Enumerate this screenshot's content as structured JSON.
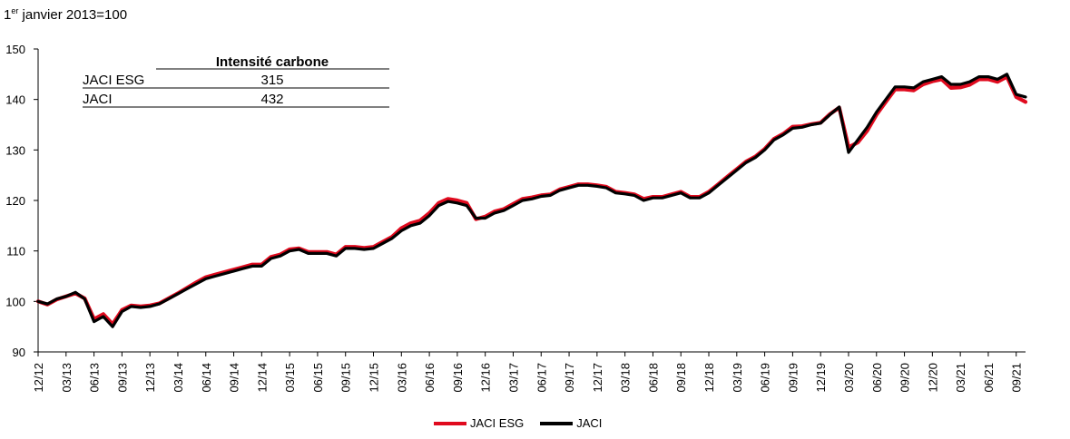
{
  "unit_label": {
    "main": "1",
    "sup": "er",
    "rest": " janvier 2013=100"
  },
  "colors": {
    "jaci_esg": "#e00a1e",
    "jaci": "#000000",
    "axis": "#000000"
  },
  "inset_table": {
    "header": "Intensité carbone",
    "rows": [
      {
        "name": "JACI ESG",
        "value": "315"
      },
      {
        "name": "JACI",
        "value": "432"
      }
    ]
  },
  "legend": [
    {
      "label": "JACI ESG",
      "series": "jaci_esg"
    },
    {
      "label": "JACI",
      "series": "jaci"
    }
  ],
  "chart_data": {
    "type": "line",
    "x_start": "2012-12",
    "x_end": "2021-10",
    "ylim": [
      90,
      150
    ],
    "y_ticks": [
      90,
      100,
      110,
      120,
      130,
      140,
      150
    ],
    "x_tick_labels": [
      "12/12",
      "03/13",
      "06/13",
      "09/13",
      "12/13",
      "03/14",
      "06/14",
      "09/14",
      "12/14",
      "03/15",
      "06/15",
      "09/15",
      "12/15",
      "03/16",
      "06/16",
      "09/16",
      "12/16",
      "03/17",
      "06/17",
      "09/17",
      "12/17",
      "03/18",
      "06/18",
      "09/18",
      "12/18",
      "03/19",
      "06/19",
      "09/19",
      "12/19",
      "03/20",
      "06/20",
      "09/20",
      "12/20",
      "03/21",
      "06/21",
      "09/21"
    ],
    "x_tick_dates": [
      "2012-12",
      "2013-03",
      "2013-06",
      "2013-09",
      "2013-12",
      "2014-03",
      "2014-06",
      "2014-09",
      "2014-12",
      "2015-03",
      "2015-06",
      "2015-09",
      "2015-12",
      "2016-03",
      "2016-06",
      "2016-09",
      "2016-12",
      "2017-03",
      "2017-06",
      "2017-09",
      "2017-12",
      "2018-03",
      "2018-06",
      "2018-09",
      "2018-12",
      "2019-03",
      "2019-06",
      "2019-09",
      "2019-12",
      "2020-03",
      "2020-06",
      "2020-09",
      "2020-12",
      "2021-03",
      "2021-06",
      "2021-09"
    ],
    "series": [
      {
        "name": "JACI",
        "key": "jaci",
        "points": [
          [
            "2012-12",
            100
          ],
          [
            "2013-01",
            99.5
          ],
          [
            "2013-02",
            100.5
          ],
          [
            "2013-03",
            101
          ],
          [
            "2013-04",
            101.8
          ],
          [
            "2013-05",
            100.5
          ],
          [
            "2013-06",
            96
          ],
          [
            "2013-07",
            97
          ],
          [
            "2013-08",
            95
          ],
          [
            "2013-09",
            98
          ],
          [
            "2013-10",
            99
          ],
          [
            "2013-11",
            98.8
          ],
          [
            "2013-12",
            99
          ],
          [
            "2014-01",
            99.5
          ],
          [
            "2014-02",
            100.5
          ],
          [
            "2014-03",
            101.5
          ],
          [
            "2014-04",
            102.5
          ],
          [
            "2014-05",
            103.5
          ],
          [
            "2014-06",
            104.5
          ],
          [
            "2014-07",
            105
          ],
          [
            "2014-08",
            105.5
          ],
          [
            "2014-09",
            106
          ],
          [
            "2014-10",
            106.5
          ],
          [
            "2014-11",
            107
          ],
          [
            "2014-12",
            107
          ],
          [
            "2015-01",
            108.5
          ],
          [
            "2015-02",
            109
          ],
          [
            "2015-03",
            110
          ],
          [
            "2015-04",
            110.3
          ],
          [
            "2015-05",
            109.5
          ],
          [
            "2015-06",
            109.5
          ],
          [
            "2015-07",
            109.5
          ],
          [
            "2015-08",
            109
          ],
          [
            "2015-09",
            110.5
          ],
          [
            "2015-10",
            110.5
          ],
          [
            "2015-11",
            110.3
          ],
          [
            "2015-12",
            110.5
          ],
          [
            "2016-01",
            111.5
          ],
          [
            "2016-02",
            112.5
          ],
          [
            "2016-03",
            114
          ],
          [
            "2016-04",
            115
          ],
          [
            "2016-05",
            115.5
          ],
          [
            "2016-06",
            117
          ],
          [
            "2016-07",
            119
          ],
          [
            "2016-08",
            119.8
          ],
          [
            "2016-09",
            119.5
          ],
          [
            "2016-10",
            119
          ],
          [
            "2016-11",
            116.5
          ],
          [
            "2016-12",
            116.5
          ],
          [
            "2017-01",
            117.5
          ],
          [
            "2017-02",
            118
          ],
          [
            "2017-03",
            119
          ],
          [
            "2017-04",
            120
          ],
          [
            "2017-05",
            120.3
          ],
          [
            "2017-06",
            120.8
          ],
          [
            "2017-07",
            121
          ],
          [
            "2017-08",
            122
          ],
          [
            "2017-09",
            122.5
          ],
          [
            "2017-10",
            123
          ],
          [
            "2017-11",
            123
          ],
          [
            "2017-12",
            122.8
          ],
          [
            "2018-01",
            122.5
          ],
          [
            "2018-02",
            121.5
          ],
          [
            "2018-03",
            121.3
          ],
          [
            "2018-04",
            121
          ],
          [
            "2018-05",
            120
          ],
          [
            "2018-06",
            120.5
          ],
          [
            "2018-07",
            120.5
          ],
          [
            "2018-08",
            121
          ],
          [
            "2018-09",
            121.5
          ],
          [
            "2018-10",
            120.5
          ],
          [
            "2018-11",
            120.5
          ],
          [
            "2018-12",
            121.5
          ],
          [
            "2019-01",
            123
          ],
          [
            "2019-02",
            124.5
          ],
          [
            "2019-03",
            126
          ],
          [
            "2019-04",
            127.5
          ],
          [
            "2019-05",
            128.5
          ],
          [
            "2019-06",
            130
          ],
          [
            "2019-07",
            132
          ],
          [
            "2019-08",
            133
          ],
          [
            "2019-09",
            134.3
          ],
          [
            "2019-10",
            134.5
          ],
          [
            "2019-11",
            135
          ],
          [
            "2019-12",
            135.3
          ],
          [
            "2020-01",
            137
          ],
          [
            "2020-02",
            138.5
          ],
          [
            "2020-03",
            129.5
          ],
          [
            "2020-04",
            132
          ],
          [
            "2020-05",
            134.5
          ],
          [
            "2020-06",
            137.5
          ],
          [
            "2020-07",
            140
          ],
          [
            "2020-08",
            142.5
          ],
          [
            "2020-09",
            142.5
          ],
          [
            "2020-10",
            142.3
          ],
          [
            "2020-11",
            143.5
          ],
          [
            "2020-12",
            144
          ],
          [
            "2021-01",
            144.5
          ],
          [
            "2021-02",
            143
          ],
          [
            "2021-03",
            143
          ],
          [
            "2021-04",
            143.5
          ],
          [
            "2021-05",
            144.5
          ],
          [
            "2021-06",
            144.5
          ],
          [
            "2021-07",
            144
          ],
          [
            "2021-08",
            145
          ],
          [
            "2021-09",
            141
          ],
          [
            "2021-10",
            140.5
          ]
        ]
      },
      {
        "name": "JACI ESG",
        "key": "jaci_esg",
        "points": [
          [
            "2012-12",
            100
          ],
          [
            "2013-01",
            99.4
          ],
          [
            "2013-02",
            100.4
          ],
          [
            "2013-03",
            101
          ],
          [
            "2013-04",
            101.6
          ],
          [
            "2013-05",
            100.6
          ],
          [
            "2013-06",
            96.5
          ],
          [
            "2013-07",
            97.5
          ],
          [
            "2013-08",
            95.5
          ],
          [
            "2013-09",
            98.3
          ],
          [
            "2013-10",
            99.2
          ],
          [
            "2013-11",
            99
          ],
          [
            "2013-12",
            99.2
          ],
          [
            "2014-01",
            99.6
          ],
          [
            "2014-02",
            100.6
          ],
          [
            "2014-03",
            101.6
          ],
          [
            "2014-04",
            102.7
          ],
          [
            "2014-05",
            103.8
          ],
          [
            "2014-06",
            104.8
          ],
          [
            "2014-07",
            105.3
          ],
          [
            "2014-08",
            105.8
          ],
          [
            "2014-09",
            106.3
          ],
          [
            "2014-10",
            106.8
          ],
          [
            "2014-11",
            107.3
          ],
          [
            "2014-12",
            107.3
          ],
          [
            "2015-01",
            108.8
          ],
          [
            "2015-02",
            109.3
          ],
          [
            "2015-03",
            110.3
          ],
          [
            "2015-04",
            110.5
          ],
          [
            "2015-05",
            109.8
          ],
          [
            "2015-06",
            109.8
          ],
          [
            "2015-07",
            109.8
          ],
          [
            "2015-08",
            109.3
          ],
          [
            "2015-09",
            110.8
          ],
          [
            "2015-10",
            110.8
          ],
          [
            "2015-11",
            110.6
          ],
          [
            "2015-12",
            110.8
          ],
          [
            "2016-01",
            111.8
          ],
          [
            "2016-02",
            112.8
          ],
          [
            "2016-03",
            114.5
          ],
          [
            "2016-04",
            115.5
          ],
          [
            "2016-05",
            116
          ],
          [
            "2016-06",
            117.5
          ],
          [
            "2016-07",
            119.5
          ],
          [
            "2016-08",
            120.3
          ],
          [
            "2016-09",
            120
          ],
          [
            "2016-10",
            119.5
          ],
          [
            "2016-11",
            116.3
          ],
          [
            "2016-12",
            116.8
          ],
          [
            "2017-01",
            117.8
          ],
          [
            "2017-02",
            118.3
          ],
          [
            "2017-03",
            119.3
          ],
          [
            "2017-04",
            120.3
          ],
          [
            "2017-05",
            120.6
          ],
          [
            "2017-06",
            121
          ],
          [
            "2017-07",
            121.2
          ],
          [
            "2017-08",
            122.2
          ],
          [
            "2017-09",
            122.7
          ],
          [
            "2017-10",
            123.2
          ],
          [
            "2017-11",
            123.2
          ],
          [
            "2017-12",
            123
          ],
          [
            "2018-01",
            122.7
          ],
          [
            "2018-02",
            121.7
          ],
          [
            "2018-03",
            121.5
          ],
          [
            "2018-04",
            121.2
          ],
          [
            "2018-05",
            120.3
          ],
          [
            "2018-06",
            120.7
          ],
          [
            "2018-07",
            120.7
          ],
          [
            "2018-08",
            121.2
          ],
          [
            "2018-09",
            121.7
          ],
          [
            "2018-10",
            120.7
          ],
          [
            "2018-11",
            120.7
          ],
          [
            "2018-12",
            121.7
          ],
          [
            "2019-01",
            123.2
          ],
          [
            "2019-02",
            124.7
          ],
          [
            "2019-03",
            126.2
          ],
          [
            "2019-04",
            127.7
          ],
          [
            "2019-05",
            128.7
          ],
          [
            "2019-06",
            130.2
          ],
          [
            "2019-07",
            132.2
          ],
          [
            "2019-08",
            133.2
          ],
          [
            "2019-09",
            134.6
          ],
          [
            "2019-10",
            134.7
          ],
          [
            "2019-11",
            135.1
          ],
          [
            "2019-12",
            135.4
          ],
          [
            "2020-01",
            137.1
          ],
          [
            "2020-02",
            138.4
          ],
          [
            "2020-03",
            130.5
          ],
          [
            "2020-04",
            131.5
          ],
          [
            "2020-05",
            133.8
          ],
          [
            "2020-06",
            137
          ],
          [
            "2020-07",
            139.5
          ],
          [
            "2020-08",
            142
          ],
          [
            "2020-09",
            142
          ],
          [
            "2020-10",
            141.8
          ],
          [
            "2020-11",
            143
          ],
          [
            "2020-12",
            143.6
          ],
          [
            "2021-01",
            144
          ],
          [
            "2021-02",
            142.3
          ],
          [
            "2021-03",
            142.4
          ],
          [
            "2021-04",
            142.9
          ],
          [
            "2021-05",
            144
          ],
          [
            "2021-06",
            144
          ],
          [
            "2021-07",
            143.5
          ],
          [
            "2021-08",
            144.5
          ],
          [
            "2021-09",
            140.5
          ],
          [
            "2021-10",
            139.5
          ]
        ]
      }
    ],
    "grid": false,
    "legend_position": "bottom-center"
  }
}
